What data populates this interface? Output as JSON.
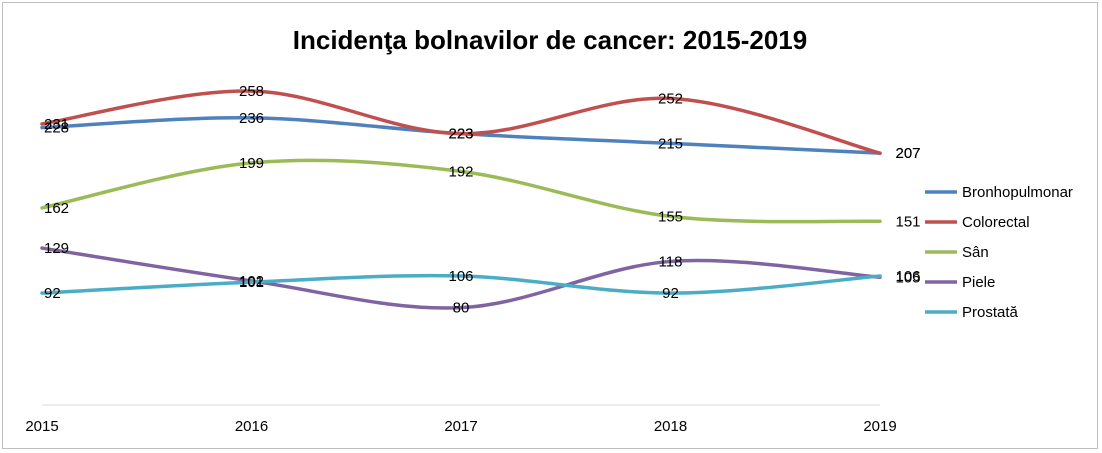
{
  "chart_data": {
    "type": "line",
    "title": "Incidenţa bolnavilor de cancer: 2015-2019",
    "xlabel": "",
    "ylabel": "",
    "x": [
      "2015",
      "2016",
      "2017",
      "2018",
      "2019"
    ],
    "ylim": [
      0,
      300
    ],
    "grid": false,
    "legend_position": "right",
    "smooth": true,
    "series": [
      {
        "name": "Bronhopulmonar",
        "color": "#4F81BD",
        "values": [
          228,
          236,
          223,
          215,
          207
        ]
      },
      {
        "name": "Colorectal",
        "color": "#C0504D",
        "values": [
          231,
          258,
          223,
          252,
          207
        ]
      },
      {
        "name": "Sân",
        "color": "#9BBB59",
        "values": [
          162,
          199,
          192,
          155,
          151
        ]
      },
      {
        "name": "Piele",
        "color": "#8064A2",
        "values": [
          129,
          102,
          80,
          118,
          105
        ]
      },
      {
        "name": "Prostată",
        "color": "#4BACC6",
        "values": [
          92,
          101,
          106,
          92,
          106
        ]
      }
    ]
  }
}
